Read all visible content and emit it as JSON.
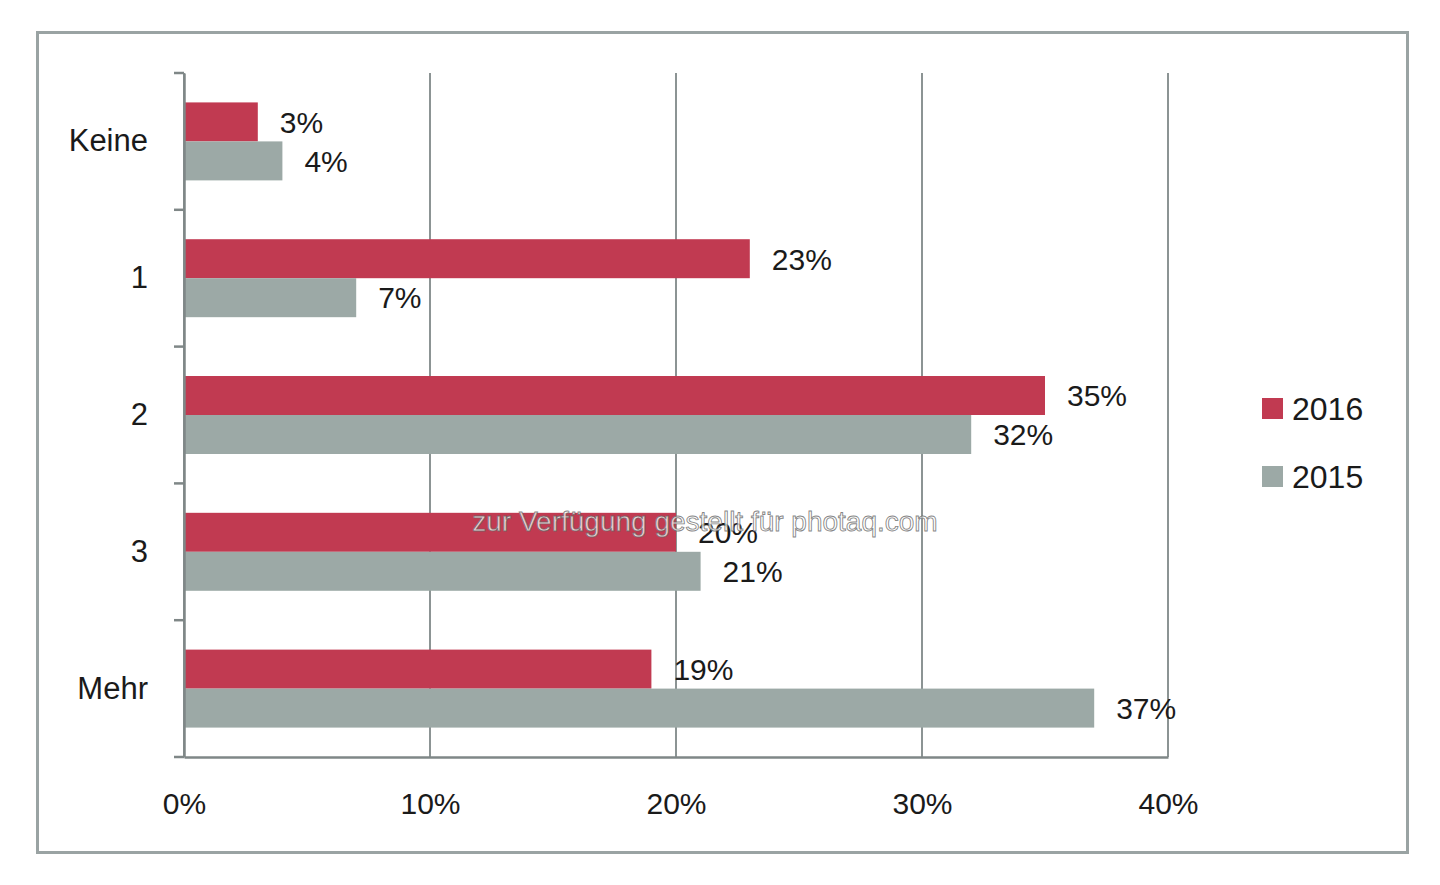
{
  "chart_data": {
    "type": "bar",
    "orientation": "horizontal",
    "categories": [
      "Keine",
      "1",
      "2",
      "3",
      "Mehr"
    ],
    "series": [
      {
        "name": "2016",
        "color": "#c13a51",
        "values": [
          3,
          23,
          35,
          20,
          19
        ],
        "value_labels": [
          "3%",
          "23%",
          "35%",
          "20%",
          "19%"
        ]
      },
      {
        "name": "2015",
        "color": "#9ca9a6",
        "values": [
          4,
          7,
          32,
          21,
          37
        ],
        "value_labels": [
          "4%",
          "7%",
          "32%",
          "21%",
          "37%"
        ]
      }
    ],
    "xlim": [
      0,
      40
    ],
    "xticks": [
      {
        "value": 0,
        "label": "0%"
      },
      {
        "value": 10,
        "label": "10%"
      },
      {
        "value": 20,
        "label": "20%"
      },
      {
        "value": 30,
        "label": "30%"
      },
      {
        "value": 40,
        "label": "40%"
      }
    ],
    "grid": true,
    "legend": "right",
    "data_labels": true,
    "annotations": [
      "zur Verfügung gestellt für photaq.com"
    ]
  }
}
